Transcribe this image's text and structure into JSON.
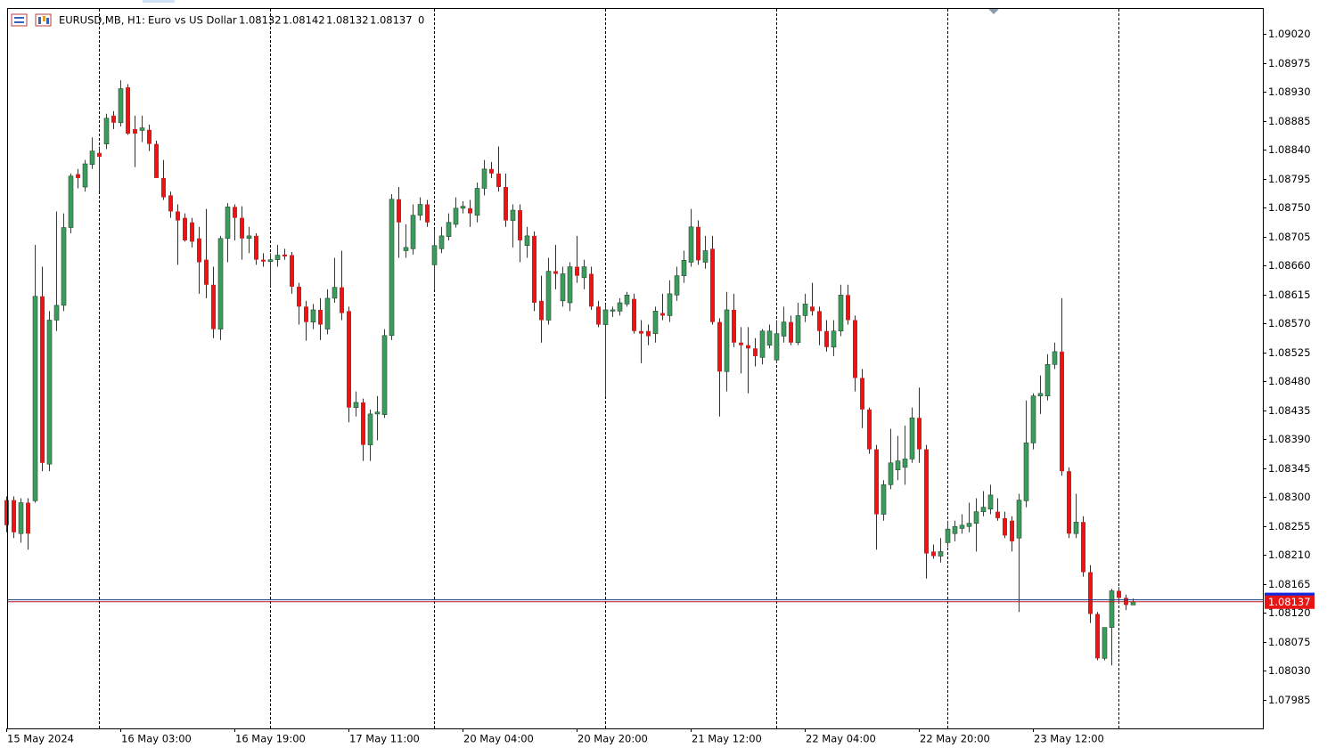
{
  "chart_data": {
    "type": "candlestick",
    "symbol": "EURUSD,MB, H1:",
    "description": "Euro vs US Dollar",
    "header_ohlc": [
      1.08132,
      1.08142,
      1.08132,
      1.08137
    ],
    "volume": 0,
    "bid": 1.08137,
    "ask": 1.0814,
    "up_color": "#3a9d5d",
    "down_color": "#e81515",
    "ylim": [
      1.0794,
      1.09059
    ],
    "yticks": [
      {
        "value": 1.0902,
        "label": "1.09020"
      },
      {
        "value": 1.08975,
        "label": "1.08975"
      },
      {
        "value": 1.0893,
        "label": "1.08930"
      },
      {
        "value": 1.08885,
        "label": "1.08885"
      },
      {
        "value": 1.0884,
        "label": "1.08840"
      },
      {
        "value": 1.08795,
        "label": "1.08795"
      },
      {
        "value": 1.0875,
        "label": "1.08750"
      },
      {
        "value": 1.08705,
        "label": "1.08705"
      },
      {
        "value": 1.0866,
        "label": "1.08660"
      },
      {
        "value": 1.08615,
        "label": "1.08615"
      },
      {
        "value": 1.0857,
        "label": "1.08570"
      },
      {
        "value": 1.08525,
        "label": "1.08525"
      },
      {
        "value": 1.0848,
        "label": "1.08480"
      },
      {
        "value": 1.08435,
        "label": "1.08435"
      },
      {
        "value": 1.0839,
        "label": "1.08390"
      },
      {
        "value": 1.08345,
        "label": "1.08345"
      },
      {
        "value": 1.083,
        "label": "1.08300"
      },
      {
        "value": 1.08255,
        "label": "1.08255"
      },
      {
        "value": 1.0821,
        "label": "1.08210"
      },
      {
        "value": 1.08165,
        "label": "1.08165"
      },
      {
        "value": 1.0812,
        "label": "1.08120"
      },
      {
        "value": 1.08075,
        "label": "1.08075"
      },
      {
        "value": 1.0803,
        "label": "1.08030"
      },
      {
        "value": 1.07985,
        "label": "1.07985"
      }
    ],
    "day_separators": [
      13,
      37,
      60,
      84,
      108,
      132,
      156
    ],
    "categories": [
      "15 May 2024",
      null,
      null,
      null,
      null,
      null,
      null,
      null,
      null,
      null,
      null,
      null,
      null,
      null,
      null,
      null,
      "16 May 03:00",
      null,
      null,
      null,
      null,
      null,
      null,
      null,
      null,
      null,
      null,
      null,
      null,
      null,
      null,
      null,
      "16 May 19:00",
      null,
      null,
      null,
      null,
      null,
      null,
      null,
      null,
      null,
      null,
      null,
      null,
      null,
      null,
      null,
      "17 May 11:00",
      null,
      null,
      null,
      null,
      null,
      null,
      null,
      null,
      null,
      null,
      null,
      null,
      null,
      null,
      null,
      "20 May 04:00",
      null,
      null,
      null,
      null,
      null,
      null,
      null,
      null,
      null,
      null,
      null,
      null,
      null,
      null,
      null,
      "20 May 20:00",
      null,
      null,
      null,
      null,
      null,
      null,
      null,
      null,
      null,
      null,
      null,
      null,
      null,
      null,
      null,
      "21 May 12:00",
      null,
      null,
      null,
      null,
      null,
      null,
      null,
      null,
      null,
      null,
      null,
      null,
      null,
      null,
      null,
      "22 May 04:00",
      null,
      null,
      null,
      null,
      null,
      null,
      null,
      null,
      null,
      null,
      null,
      null,
      null,
      null,
      null,
      "22 May 20:00",
      null,
      null,
      null,
      null,
      null,
      null,
      null,
      null,
      null,
      null,
      null,
      null,
      null,
      null,
      null,
      "23 May 12:00",
      null,
      null,
      null,
      null,
      null,
      null,
      null,
      null,
      null,
      null,
      null,
      null,
      null,
      null
    ],
    "open": [
      1.08295,
      1.08295,
      1.08243,
      1.08291,
      1.08294,
      1.08612,
      1.08351,
      1.08575,
      1.08598,
      1.08719,
      1.08802,
      1.08782,
      1.08817,
      1.08835,
      1.08849,
      1.08893,
      1.08882,
      1.08937,
      1.08872,
      1.0887,
      1.08871,
      1.08849,
      1.08796,
      1.08769,
      1.08744,
      1.08734,
      1.08727,
      1.08702,
      1.08669,
      1.0863,
      1.08561,
      1.08702,
      1.08751,
      1.08734,
      1.08702,
      1.08706,
      1.08669,
      1.08666,
      1.08669,
      1.08677,
      1.08676,
      1.08627,
      1.08596,
      1.08572,
      1.08591,
      1.08561,
      1.08609,
      1.08626,
      1.08589,
      1.08439,
      1.08447,
      1.08381,
      1.08429,
      1.08428,
      1.08551,
      1.08763,
      1.08683,
      1.08686,
      1.08738,
      1.08755,
      1.08661,
      1.08686,
      1.08705,
      1.08724,
      1.08749,
      1.08749,
      1.08738,
      1.0878,
      1.0881,
      1.08803,
      1.08782,
      1.0873,
      1.08746,
      1.08691,
      1.08706,
      1.08605,
      1.08575,
      1.08651,
      1.08605,
      1.08602,
      1.08658,
      1.08641,
      1.08647,
      1.08596,
      1.08568,
      1.08589,
      1.08589,
      1.086,
      1.08608,
      1.08558,
      1.08558,
      1.08554,
      1.08586,
      1.08582,
      1.08614,
      1.08644,
      1.08665,
      1.0872,
      1.08665,
      1.08686,
      1.08572,
      1.08495,
      1.08591,
      1.0854,
      1.08536,
      1.08531,
      1.08517,
      1.08536,
      1.08513,
      1.0855,
      1.08572,
      1.0854,
      1.08582,
      1.08596,
      1.08589,
      1.08558,
      1.08533,
      1.08558,
      1.08614,
      1.08575,
      1.08485,
      1.08436,
      1.08374,
      1.08273,
      1.08319,
      1.08342,
      1.08346,
      1.08359,
      1.08423,
      1.08374,
      1.08215,
      1.08208,
      1.08229,
      1.08243,
      1.08251,
      1.08254,
      1.08259,
      1.08277,
      1.08281,
      1.08277,
      1.08267,
      1.08263,
      1.08236,
      1.08294,
      1.08384,
      1.08457,
      1.08457,
      1.08506,
      1.08526,
      1.0834,
      1.08243,
      1.08261,
      1.08183,
      1.08118,
      1.08049,
      1.08097,
      1.08154,
      1.08143,
      1.08132
    ],
    "high": [
      1.08301,
      1.08301,
      1.08298,
      1.08298,
      1.08692,
      1.08658,
      1.08589,
      1.08744,
      1.08741,
      1.08803,
      1.0881,
      1.08824,
      1.08859,
      1.08845,
      1.08896,
      1.089,
      1.08948,
      1.08942,
      1.08893,
      1.08893,
      1.08879,
      1.08854,
      1.08824,
      1.08775,
      1.08755,
      1.08741,
      1.08734,
      1.0872,
      1.08748,
      1.08658,
      1.08706,
      1.08757,
      1.08755,
      1.08752,
      1.0872,
      1.0871,
      1.08679,
      1.08679,
      1.08692,
      1.08686,
      1.08681,
      1.08633,
      1.08605,
      1.086,
      1.08609,
      1.08623,
      1.08672,
      1.08683,
      1.08596,
      1.08464,
      1.08453,
      1.08436,
      1.08457,
      1.08561,
      1.08771,
      1.08782,
      1.08724,
      1.08755,
      1.08766,
      1.08762,
      1.08716,
      1.0872,
      1.08741,
      1.08766,
      1.0876,
      1.08762,
      1.08789,
      1.08824,
      1.08821,
      1.08845,
      1.08803,
      1.08755,
      1.08755,
      1.0872,
      1.08713,
      1.08644,
      1.08672,
      1.08692,
      1.08658,
      1.08665,
      1.08706,
      1.08669,
      1.08658,
      1.08605,
      1.086,
      1.08596,
      1.08609,
      1.08619,
      1.08616,
      1.08575,
      1.08568,
      1.08596,
      1.08616,
      1.08637,
      1.08658,
      1.08683,
      1.08748,
      1.0873,
      1.08706,
      1.08706,
      1.08578,
      1.08619,
      1.08616,
      1.08564,
      1.08564,
      1.08547,
      1.08561,
      1.08568,
      1.08575,
      1.08596,
      1.08582,
      1.08602,
      1.08616,
      1.08633,
      1.08596,
      1.08575,
      1.08575,
      1.0863,
      1.0863,
      1.08582,
      1.08499,
      1.08439,
      1.08381,
      1.08326,
      1.08406,
      1.08395,
      1.08411,
      1.08439,
      1.0847,
      1.08381,
      1.08226,
      1.08236,
      1.08263,
      1.08263,
      1.08273,
      1.08291,
      1.08298,
      1.08309,
      1.08319,
      1.08298,
      1.08277,
      1.0827,
      1.08305,
      1.0845,
      1.08461,
      1.08489,
      1.08522,
      1.0854,
      1.08609,
      1.08346,
      1.08305,
      1.0827,
      1.08194,
      1.08121,
      1.08097,
      1.08157,
      1.0816,
      1.08148,
      1.08142
    ],
    "low": [
      1.08245,
      1.08236,
      1.08229,
      1.08218,
      1.08291,
      1.0834,
      1.0834,
      1.08558,
      1.08589,
      1.0871,
      1.0878,
      1.08775,
      1.0881,
      1.08775,
      1.08841,
      1.08872,
      1.08876,
      1.08863,
      1.08813,
      1.08852,
      1.08838,
      1.08796,
      1.08762,
      1.08734,
      1.08661,
      1.08697,
      1.08688,
      1.08616,
      1.08609,
      1.08547,
      1.08544,
      1.08665,
      1.08699,
      1.08669,
      1.08679,
      1.08661,
      1.08658,
      1.08627,
      1.08658,
      1.08669,
      1.08616,
      1.08568,
      1.08543,
      1.08561,
      1.08544,
      1.08553,
      1.08602,
      1.08575,
      1.08416,
      1.08425,
      1.08356,
      1.08356,
      1.08388,
      1.08423,
      1.08544,
      1.08672,
      1.08672,
      1.08677,
      1.0873,
      1.0872,
      1.08623,
      1.08679,
      1.08699,
      1.08719,
      1.08741,
      1.0872,
      1.08727,
      1.08769,
      1.08796,
      1.08775,
      1.0872,
      1.08688,
      1.08665,
      1.08672,
      1.08589,
      1.0854,
      1.08568,
      1.08623,
      1.08596,
      1.08589,
      1.08633,
      1.08623,
      1.08591,
      1.08564,
      1.08457,
      1.0858,
      1.08582,
      1.08596,
      1.08554,
      1.08508,
      1.08536,
      1.0854,
      1.08575,
      1.08572,
      1.08605,
      1.08633,
      1.08658,
      1.08661,
      1.08655,
      1.08568,
      1.08425,
      1.08464,
      1.08533,
      1.08492,
      1.08461,
      1.08503,
      1.08506,
      1.08531,
      1.08508,
      1.0854,
      1.08536,
      1.08536,
      1.08572,
      1.08582,
      1.08536,
      1.08526,
      1.08519,
      1.0855,
      1.08568,
      1.08464,
      1.08407,
      1.08367,
      1.08218,
      1.08263,
      1.08312,
      1.08326,
      1.08319,
      1.08353,
      1.08353,
      1.08173,
      1.08204,
      1.08198,
      1.08222,
      1.08231,
      1.08243,
      1.08245,
      1.08215,
      1.0827,
      1.08273,
      1.08263,
      1.08236,
      1.08215,
      1.08121,
      1.08284,
      1.08374,
      1.08429,
      1.0845,
      1.08499,
      1.08333,
      1.08236,
      1.08236,
      1.08176,
      1.08104,
      1.08046,
      1.08046,
      1.08038,
      1.08135,
      1.08124,
      1.08132
    ],
    "close": [
      1.08256,
      1.08245,
      1.08291,
      1.08243,
      1.08612,
      1.08353,
      1.08575,
      1.08598,
      1.08719,
      1.08799,
      1.08796,
      1.08818,
      1.08838,
      1.08829,
      1.08889,
      1.08882,
      1.08935,
      1.08865,
      1.08865,
      1.08874,
      1.08849,
      1.08796,
      1.08766,
      1.08744,
      1.0873,
      1.08699,
      1.08697,
      1.08665,
      1.0863,
      1.08561,
      1.08702,
      1.08751,
      1.08734,
      1.08702,
      1.08706,
      1.08669,
      1.08666,
      1.08669,
      1.08676,
      1.08674,
      1.08627,
      1.08596,
      1.08572,
      1.08591,
      1.08568,
      1.08609,
      1.08626,
      1.08586,
      1.08439,
      1.08447,
      1.08381,
      1.08429,
      1.08432,
      1.08551,
      1.08763,
      1.08727,
      1.08688,
      1.08738,
      1.08755,
      1.08727,
      1.08691,
      1.08706,
      1.08727,
      1.08749,
      1.08752,
      1.08741,
      1.0878,
      1.0881,
      1.08803,
      1.08782,
      1.0873,
      1.08746,
      1.08699,
      1.08706,
      1.08602,
      1.08575,
      1.08651,
      1.08647,
      1.08647,
      1.08658,
      1.08644,
      1.08658,
      1.08596,
      1.08568,
      1.08591,
      1.08591,
      1.08602,
      1.08614,
      1.08558,
      1.08554,
      1.0855,
      1.08589,
      1.08582,
      1.08616,
      1.08644,
      1.08668,
      1.0872,
      1.08668,
      1.08683,
      1.08572,
      1.08495,
      1.08591,
      1.0854,
      1.08536,
      1.08531,
      1.08519,
      1.08558,
      1.08558,
      1.08554,
      1.08572,
      1.0854,
      1.08582,
      1.086,
      1.08589,
      1.08558,
      1.08533,
      1.08558,
      1.08614,
      1.08575,
      1.08485,
      1.08436,
      1.08374,
      1.08273,
      1.08319,
      1.08353,
      1.08356,
      1.08359,
      1.08423,
      1.08374,
      1.08212,
      1.08208,
      1.08215,
      1.0825,
      1.08254,
      1.08256,
      1.08259,
      1.08277,
      1.08284,
      1.08303,
      1.08267,
      1.0824,
      1.08231,
      1.08295,
      1.08384,
      1.08457,
      1.08461,
      1.08506,
      1.08526,
      1.0834,
      1.08243,
      1.08261,
      1.08183,
      1.08118,
      1.08049,
      1.08097,
      1.08154,
      1.08143,
      1.08132,
      1.08137
    ]
  }
}
